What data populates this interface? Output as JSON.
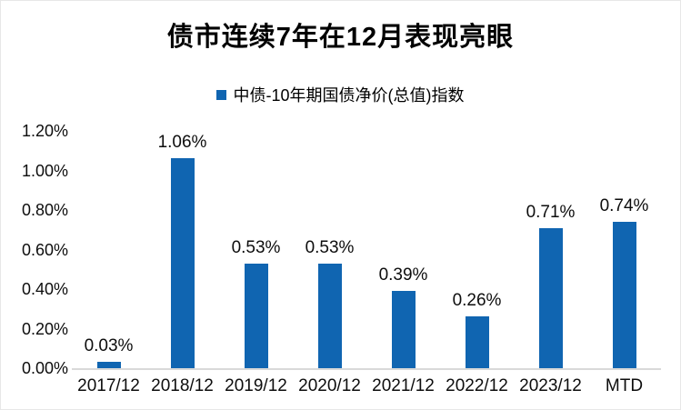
{
  "chart_data": {
    "type": "bar",
    "title": "债市连续7年在12月表现亮眼",
    "legend": "中债-10年期国债净价(总值)指数",
    "legend_position": "top",
    "categories": [
      "2017/12",
      "2018/12",
      "2019/12",
      "2020/12",
      "2021/12",
      "2022/12",
      "2023/12",
      "MTD"
    ],
    "values": [
      0.03,
      1.06,
      0.53,
      0.53,
      0.39,
      0.26,
      0.71,
      0.74
    ],
    "data_labels": [
      "0.03%",
      "1.06%",
      "0.53%",
      "0.53%",
      "0.39%",
      "0.26%",
      "0.71%",
      "0.74%"
    ],
    "xlabel": "",
    "ylabel": "",
    "ylim": [
      0,
      1.2
    ],
    "y_tick_labels": [
      "0.00%",
      "0.20%",
      "0.40%",
      "0.60%",
      "0.80%",
      "1.00%",
      "1.20%"
    ],
    "y_tick_values": [
      0,
      0.2,
      0.4,
      0.6,
      0.8,
      1.0,
      1.2
    ],
    "grid": false,
    "bar_color": "#1065B1",
    "axis_line_color": "#d9d9d9"
  }
}
